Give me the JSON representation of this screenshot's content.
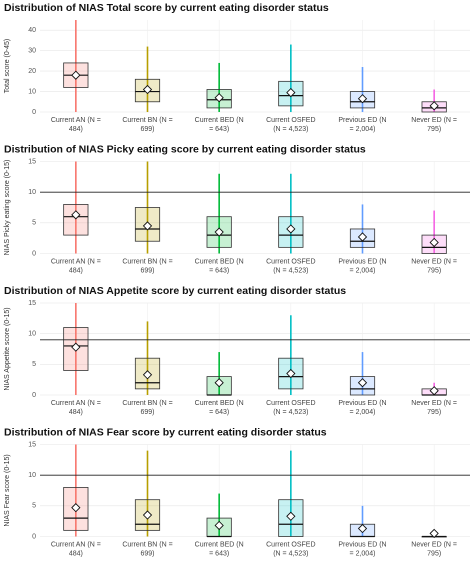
{
  "chart_data": [
    {
      "type": "box",
      "title": "Distribution of NIAS Total score by current eating disorder status",
      "y_label": "Total score (0-45)",
      "categories": [
        [
          "Current AN (N =",
          "484)"
        ],
        [
          "Current BN (N =",
          "699)"
        ],
        [
          "Current BED (N",
          "= 643)"
        ],
        [
          "Current OSFED",
          "(N = 4,523)"
        ],
        [
          "Previous ED (N",
          "= 2,004)"
        ],
        [
          "Never ED (N =",
          "795)"
        ]
      ],
      "colors": [
        "#F8766D",
        "#B79F00",
        "#00BA38",
        "#00BFC4",
        "#619CFF",
        "#F564E3"
      ],
      "ylim": [
        0,
        45
      ],
      "yticks": [
        0,
        10,
        20,
        30,
        40
      ],
      "hline": null,
      "q1": [
        12,
        5,
        2,
        3,
        2,
        0
      ],
      "median": [
        18,
        10,
        6,
        8,
        5,
        2
      ],
      "q3": [
        24,
        16,
        11,
        15,
        10,
        5
      ],
      "mean": [
        18,
        11,
        7,
        9.5,
        6.5,
        3
      ],
      "whisker_low": [
        0,
        0,
        0,
        0,
        0,
        0
      ],
      "whisker_high": [
        45,
        32,
        24,
        33,
        22,
        11
      ]
    },
    {
      "type": "box",
      "title": "Distribution of NIAS Picky eating score by current eating disorder status",
      "y_label": "NIAS Picky eating score (0-15)",
      "categories": [
        [
          "Current AN (N =",
          "484)"
        ],
        [
          "Current BN (N =",
          "699)"
        ],
        [
          "Current BED (N",
          "= 643)"
        ],
        [
          "Current OSFED",
          "(N = 4,523)"
        ],
        [
          "Previous ED (N",
          "= 2,004)"
        ],
        [
          "Never ED (N =",
          "795)"
        ]
      ],
      "colors": [
        "#F8766D",
        "#B79F00",
        "#00BA38",
        "#00BFC4",
        "#619CFF",
        "#F564E3"
      ],
      "ylim": [
        0,
        15
      ],
      "yticks": [
        0,
        5,
        10,
        15
      ],
      "hline": 10,
      "q1": [
        3,
        2,
        1,
        1,
        1,
        0
      ],
      "median": [
        6,
        4,
        3,
        3,
        2,
        1
      ],
      "q3": [
        8,
        7.5,
        6,
        6,
        4,
        3
      ],
      "mean": [
        6.3,
        4.5,
        3.5,
        4,
        2.7,
        1.8
      ],
      "whisker_low": [
        0,
        0,
        0,
        0,
        0,
        0
      ],
      "whisker_high": [
        15,
        15,
        13,
        13,
        8,
        7
      ]
    },
    {
      "type": "box",
      "title": "Distribution of NIAS Appetite score by current eating disorder status",
      "y_label": "NIAS Appetite score (0-15)",
      "categories": [
        [
          "Current AN (N =",
          "484)"
        ],
        [
          "Current BN (N =",
          "699)"
        ],
        [
          "Current BED (N",
          "= 643)"
        ],
        [
          "Current OSFED",
          "(N = 4,523)"
        ],
        [
          "Previous ED (N",
          "= 2,004)"
        ],
        [
          "Never ED (N =",
          "795)"
        ]
      ],
      "colors": [
        "#F8766D",
        "#B79F00",
        "#00BA38",
        "#00BFC4",
        "#619CFF",
        "#F564E3"
      ],
      "ylim": [
        0,
        15
      ],
      "yticks": [
        0,
        5,
        10,
        15
      ],
      "hline": 9,
      "q1": [
        4,
        1,
        0,
        1,
        0,
        0
      ],
      "median": [
        8,
        2,
        0,
        3,
        1,
        0
      ],
      "q3": [
        11,
        6,
        3,
        6,
        3,
        1
      ],
      "mean": [
        7.8,
        3.3,
        2,
        3.5,
        2,
        0.7
      ],
      "whisker_low": [
        0,
        0,
        0,
        0,
        0,
        0
      ],
      "whisker_high": [
        15,
        12,
        7,
        13,
        7,
        2
      ]
    },
    {
      "type": "box",
      "title": "Distribution of NIAS Fear score by current eating disorder status",
      "y_label": "NIAS Fear score (0-15)",
      "categories": [
        [
          "Current AN (N =",
          "484)"
        ],
        [
          "Current BN (N =",
          "699)"
        ],
        [
          "Current BED (N",
          "= 643)"
        ],
        [
          "Current OSFED",
          "(N = 4,523)"
        ],
        [
          "Previous ED (N",
          "= 2,004)"
        ],
        [
          "Never ED (N =",
          "795)"
        ]
      ],
      "colors": [
        "#F8766D",
        "#B79F00",
        "#00BA38",
        "#00BFC4",
        "#619CFF",
        "#F564E3"
      ],
      "ylim": [
        0,
        15
      ],
      "yticks": [
        0,
        5,
        10,
        15
      ],
      "hline": 10,
      "q1": [
        1,
        1,
        0,
        0,
        0,
        0
      ],
      "median": [
        3,
        2,
        0,
        2,
        0,
        0
      ],
      "q3": [
        8,
        6,
        3,
        6,
        2,
        0
      ],
      "mean": [
        4.7,
        3.5,
        1.8,
        3.3,
        1.3,
        0.5
      ],
      "whisker_low": [
        0,
        0,
        0,
        0,
        0,
        0
      ],
      "whisker_high": [
        15,
        14,
        7,
        14,
        5,
        0
      ]
    }
  ]
}
